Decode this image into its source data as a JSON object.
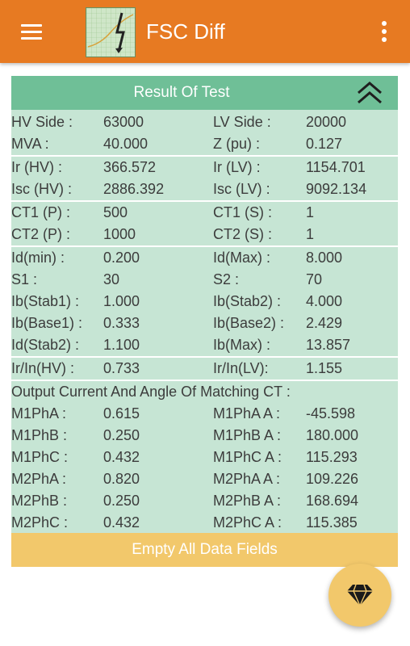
{
  "app": {
    "title": "FSC Diff",
    "logo_text": "FSC Diff"
  },
  "card": {
    "title": "Result Of Test",
    "groups": [
      {
        "rows": [
          {
            "l1": "HV Side :",
            "v1": "63000",
            "l2": "LV Side :",
            "v2": "20000"
          },
          {
            "l1": "MVA :",
            "v1": "40.000",
            "l2": "Z (pu) :",
            "v2": "0.127"
          }
        ]
      },
      {
        "rows": [
          {
            "l1": "Ir (HV) :",
            "v1": "366.572",
            "l2": "Ir (LV) :",
            "v2": "1154.701"
          },
          {
            "l1": "Isc (HV) :",
            "v1": "2886.392",
            "l2": "Isc (LV) :",
            "v2": "9092.134"
          }
        ]
      },
      {
        "rows": [
          {
            "l1": "CT1 (P) :",
            "v1": "500",
            "l2": "CT1 (S) :",
            "v2": "1"
          },
          {
            "l1": "CT2 (P) :",
            "v1": "1000",
            "l2": "CT2 (S) :",
            "v2": "1"
          }
        ]
      },
      {
        "rows": [
          {
            "l1": "Id(min) :",
            "v1": "0.200",
            "l2": "Id(Max) :",
            "v2": "8.000"
          },
          {
            "l1": "S1 :",
            "v1": "30",
            "l2": "S2 :",
            "v2": "70"
          },
          {
            "l1": "Ib(Stab1) :",
            "v1": "1.000",
            "l2": "Ib(Stab2) :",
            "v2": "4.000"
          },
          {
            "l1": "Ib(Base1) :",
            "v1": "0.333",
            "l2": "Ib(Base2) :",
            "v2": "2.429"
          },
          {
            "l1": "Id(Stab2) :",
            "v1": "1.100",
            "l2": "Ib(Max) :",
            "v2": "13.857"
          }
        ]
      },
      {
        "rows": [
          {
            "l1": "Ir/In(HV) :",
            "v1": "0.733",
            "l2": "Ir/In(LV):",
            "v2": "1.155"
          }
        ]
      },
      {
        "heading": "Output Current And Angle Of Matching CT :",
        "rows": [
          {
            "l1": "M1PhA :",
            "v1": "0.615",
            "l2": "M1PhA A :",
            "v2": "-45.598"
          },
          {
            "l1": "M1PhB :",
            "v1": "0.250",
            "l2": "M1PhB A :",
            "v2": "180.000"
          },
          {
            "l1": "M1PhC :",
            "v1": "0.432",
            "l2": "M1PhC A :",
            "v2": "115.293"
          },
          {
            "l1": "M2PhA :",
            "v1": "0.820",
            "l2": "M2PhA A :",
            "v2": "109.226"
          },
          {
            "l1": "M2PhB :",
            "v1": "0.250",
            "l2": "M2PhB A :",
            "v2": "168.694"
          },
          {
            "l1": "M2PhC :",
            "v1": "0.432",
            "l2": "M2PhC A :",
            "v2": "115.385"
          }
        ]
      }
    ]
  },
  "actions": {
    "empty_label": "Empty All Data Fields"
  },
  "icons": {
    "menu": "menu-icon",
    "more": "more-vert-icon",
    "collapse": "double-chevron-up-icon",
    "fab": "diamond-icon"
  },
  "colors": {
    "appbar": "#e77a22",
    "card_header": "#6fbf97",
    "card_body": "#c6e5d4",
    "button": "#f2c86b"
  }
}
